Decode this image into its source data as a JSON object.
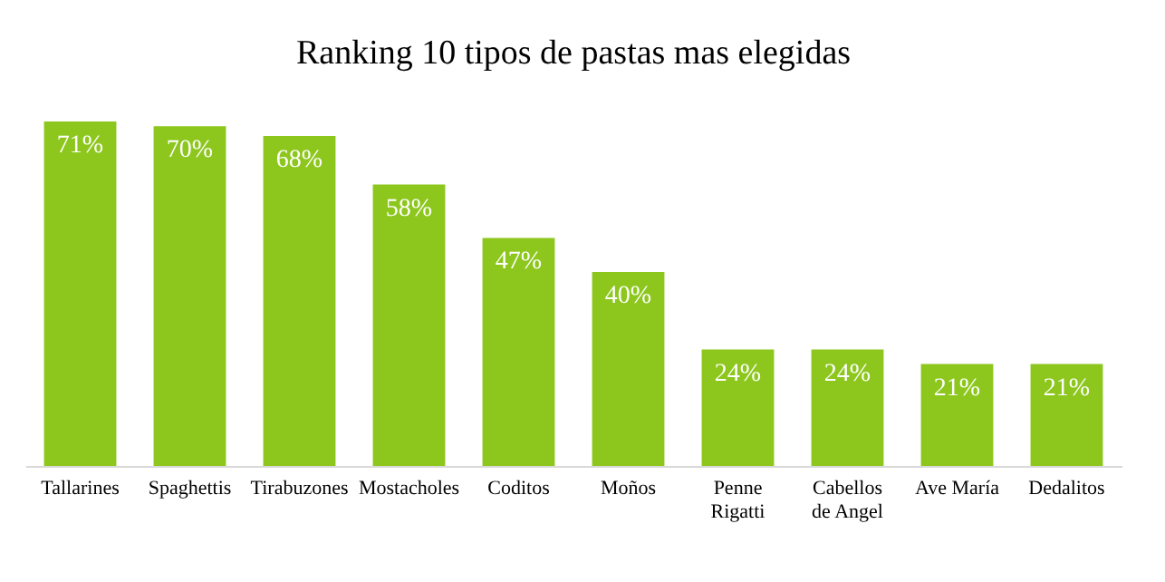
{
  "chart_data": {
    "type": "bar",
    "title": "Ranking 10 tipos de pastas mas elegidas",
    "categories": [
      "Tallarines",
      "Spaghettis",
      "Tirabuzones",
      "Mostacholes",
      "Coditos",
      "Moños",
      "Penne Rigatti",
      "Cabellos de Angel",
      "Ave María",
      "Dedalitos"
    ],
    "values": [
      71,
      70,
      68,
      58,
      47,
      40,
      24,
      24,
      21,
      21
    ],
    "value_labels": [
      "71%",
      "70%",
      "68%",
      "58%",
      "47%",
      "40%",
      "24%",
      "24%",
      "21%",
      "21%"
    ],
    "color": "#8dc71e"
  }
}
